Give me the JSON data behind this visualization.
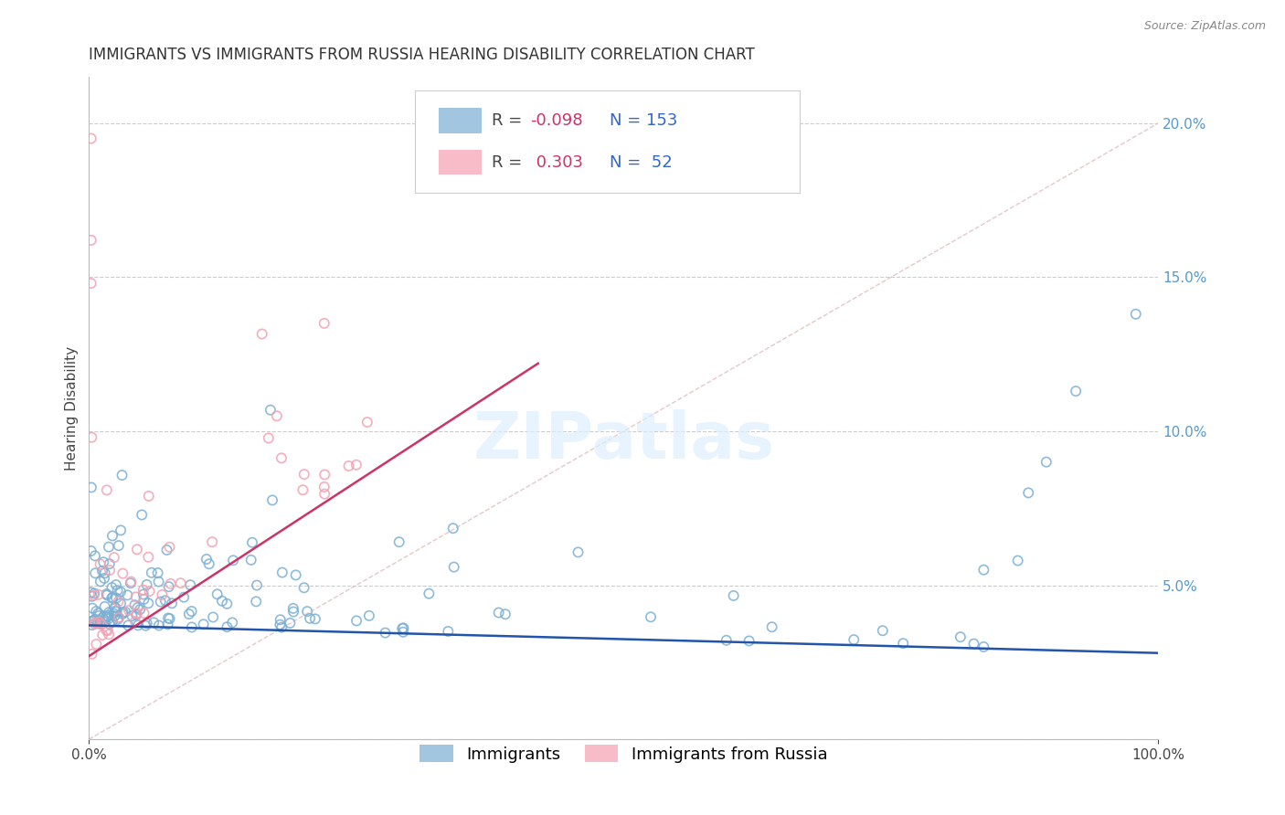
{
  "title": "IMMIGRANTS VS IMMIGRANTS FROM RUSSIA HEARING DISABILITY CORRELATION CHART",
  "source": "Source: ZipAtlas.com",
  "ylabel": "Hearing Disability",
  "blue_color": "#7BAFD4",
  "pink_color": "#F4A0B0",
  "blue_line_color": "#2255AA",
  "pink_line_color": "#CC3366",
  "diagonal_color": "#DDBBBB",
  "grid_color": "#CCCCCC",
  "background_color": "#FFFFFF",
  "title_fontsize": 12,
  "axis_label_fontsize": 11,
  "tick_fontsize": 11,
  "legend_fontsize": 13,
  "r_color": "#CC3366",
  "n_color": "#3366CC",
  "ytick_color": "#5599CC",
  "blue_trend": [
    0.0,
    1.0,
    0.037,
    0.028
  ],
  "pink_trend": [
    0.0,
    0.42,
    0.027,
    0.122
  ],
  "diag": [
    0.0,
    1.0,
    0.0,
    0.2
  ],
  "xlim": [
    0.0,
    1.0
  ],
  "ylim": [
    0.0,
    0.215
  ]
}
